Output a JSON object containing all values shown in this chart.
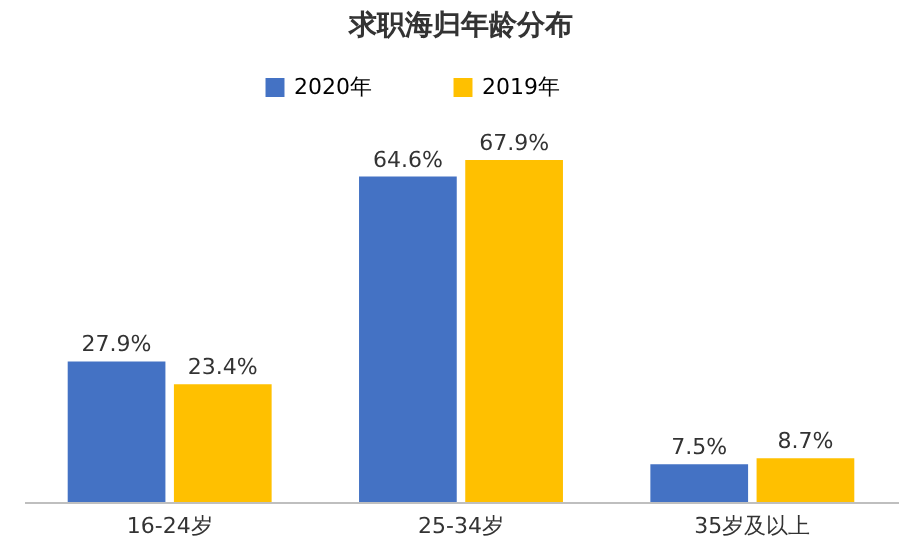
{
  "chart_data": {
    "type": "bar",
    "title": "求职海归年龄分布",
    "categories": [
      "16-24岁",
      "25-34岁",
      "35岁及以上"
    ],
    "series": [
      {
        "name": "2020年",
        "color": "#4472c4",
        "values": [
          27.9,
          64.6,
          7.5
        ],
        "value_labels": [
          "27.9%",
          "64.6%",
          "7.5%"
        ]
      },
      {
        "name": "2019年",
        "color": "#ffc000",
        "values": [
          23.4,
          67.9,
          8.7
        ],
        "value_labels": [
          "23.4%",
          "67.9%",
          "8.7%"
        ]
      }
    ],
    "legend": "top"
  }
}
